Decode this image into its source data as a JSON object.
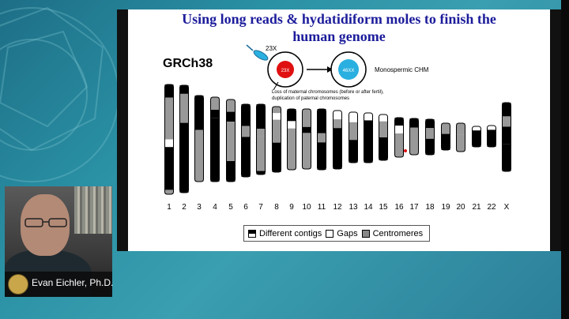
{
  "slide": {
    "title_line1": "Using long reads & hydatidiform moles to finish the",
    "title_line2": "human genome",
    "assembly_label": "GRCh38",
    "diagram": {
      "sperm_label": "23X",
      "cell1_label": "23X",
      "cell2_label": "46XX",
      "result_label": "Monospermic CHM",
      "note_line1": "Loss of maternal chromosomes (before or after fertil),",
      "note_line2": "duplication of paternal chromosomes"
    },
    "chromosomes": [
      "1",
      "2",
      "3",
      "4",
      "5",
      "6",
      "7",
      "8",
      "9",
      "10",
      "11",
      "12",
      "13",
      "14",
      "15",
      "16",
      "17",
      "18",
      "19",
      "20",
      "21",
      "22",
      "X"
    ],
    "legend": {
      "contigs": "Different contigs",
      "gaps": "Gaps",
      "centromeres": "Centromeres"
    },
    "colors": {
      "title": "#1c1c9c",
      "cell_red": "#e01010",
      "cell_blue": "#2ab0e0"
    }
  },
  "speaker": {
    "name": "Evan Eichler, Ph.D."
  }
}
